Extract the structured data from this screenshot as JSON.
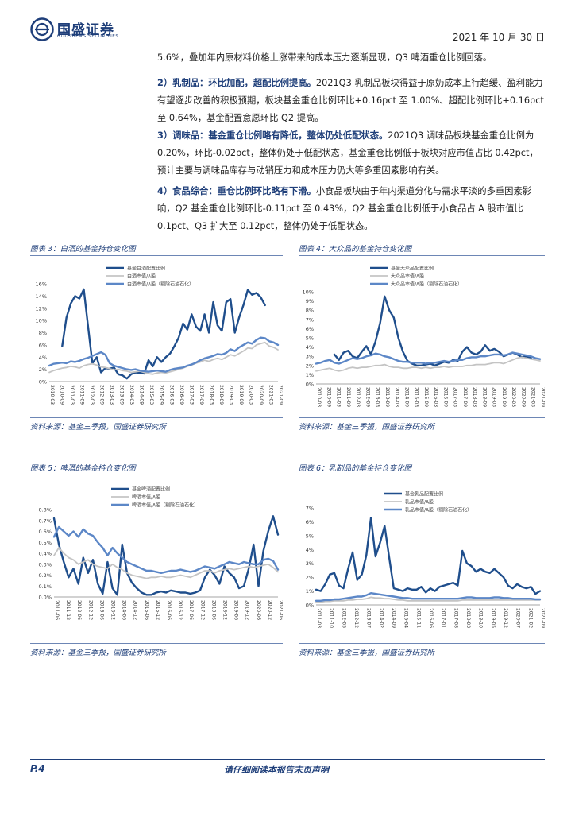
{
  "header": {
    "logo_cn": "国盛证券",
    "logo_en": "GUOSHENG SECURITIES",
    "date": "2021 年 10 月 30 日"
  },
  "paragraphs": [
    {
      "bold": "",
      "text": "5.6%，叠加年内原材料价格上涨带来的成本压力逐渐显现，Q3 啤酒重仓比例回落。"
    },
    {
      "bold": "2）乳制品：环比加配，超配比例提高。",
      "text": "2021Q3 乳制品板块得益于原奶成本上行趋缓、盈利能力有望逐步改善的积极预期，板块基金重仓比例环比+0.16pct 至 1.00%、超配比例环比+0.16pct 至 0.64%，基金配置意愿环比 Q2 提高。"
    },
    {
      "bold": "3）调味品：基金重仓比例略有降低，整体仍处低配状态。",
      "text": "2021Q3 调味品板块基金重仓比例为 0.20%，环比-0.02pct，整体仍处于低配状态，基金重仓比例低于板块对应市值占比 0.42pct，预计主要与调味品库存与动销压力和成本压力仍大等多重因素影响有关。"
    },
    {
      "bold": "4）食品综合：重仓比例环比略有下滑。",
      "text": "小食品板块由于年内渠道分化与需求平淡的多重因素影响，Q2 基金重仓比例环比-0.11pct 至 0.43%，Q2 基金重仓比例低于小食品占 A 股市值比 0.1pct、Q3 扩大至 0.12pct，整体仍处于低配状态。"
    }
  ],
  "figures": [
    {
      "title": "图表 3：白酒的基金持仓变化图",
      "source": "资料来源：基金三季报，国盛证券研究所"
    },
    {
      "title": "图表 4：大众品的基金持仓变化图",
      "source": "资料来源：基金三季报，国盛证券研究所"
    },
    {
      "title": "图表 5：啤酒的基金持仓变化图",
      "source": "资料来源：基金三季报，国盛证券研究所"
    },
    {
      "title": "图表 6：乳制品的基金持仓变化图",
      "source": "资料来源：基金三季报，国盛证券研究所"
    }
  ],
  "chart_data": [
    {
      "type": "line",
      "title": "白酒的基金持仓变化图",
      "ylim": [
        0,
        16
      ],
      "yticks": [
        "0%",
        "2%",
        "4%",
        "6%",
        "8%",
        "10%",
        "12%",
        "14%",
        "16%"
      ],
      "xticks": [
        "2010-03",
        "2010-09",
        "2011-03",
        "2011-09",
        "2012-03",
        "2012-09",
        "2013-03",
        "2013-09",
        "2014-03",
        "2014-09",
        "2015-03",
        "2015-09",
        "2016-03",
        "2016-09",
        "2017-03",
        "2017-09",
        "2018-03",
        "2018-09",
        "2019-03",
        "2019-09",
        "2020-03",
        "2020-09",
        "2021-03",
        "2021-09"
      ],
      "series": [
        {
          "name": "基金白酒配置比例",
          "color": "#1f4e8c",
          "width": 2.4,
          "start": 3,
          "values": [
            5.8,
            10.5,
            12.8,
            14,
            13.6,
            15.1,
            9,
            3,
            4,
            1.5,
            2.2,
            2.1,
            2.3,
            1.2,
            1,
            0.5,
            1.2,
            1.5,
            1.4,
            1.3,
            3.5,
            2.5,
            4,
            3.2,
            4,
            4.6,
            5.8,
            7.2,
            9.5,
            8.5,
            11,
            9,
            8.3,
            11,
            8,
            13,
            9.2,
            8.3,
            13,
            13.5,
            8,
            10.5,
            12.5,
            15,
            14.2,
            14.5,
            13.8,
            12.5
          ]
        },
        {
          "name": "白酒市值/A股",
          "color": "#c4c4c4",
          "width": 1.8,
          "start": 0,
          "values": [
            1.5,
            1.8,
            2,
            2.2,
            2.3,
            2.5,
            2.4,
            2.2,
            2.6,
            2.8,
            2.9,
            2.7,
            2.4,
            2.3,
            2.1,
            1.9,
            2,
            1.8,
            1.7,
            1.5,
            1.6,
            1.7,
            1.5,
            1.3,
            1.2,
            1.4,
            1.5,
            1.4,
            1.6,
            1.8,
            2.0,
            2.2,
            2.5,
            2.7,
            3.0,
            3.2,
            3.5,
            3.3,
            3.6,
            3.8,
            3.6,
            4.0,
            4.4,
            4.2,
            4.6,
            5.0,
            5.5,
            5.4,
            6.0,
            6.2,
            6.4,
            5.8,
            5.6,
            5.2
          ]
        },
        {
          "name": "白酒市值/A股（剔除石油石化）",
          "color": "#5c87c7",
          "width": 2.4,
          "start": 0,
          "values": [
            2.6,
            2.9,
            3.0,
            3.1,
            3.0,
            3.3,
            3.2,
            3.4,
            3.7,
            3.9,
            4.2,
            4.5,
            4.8,
            4.4,
            3.0,
            2.6,
            2.4,
            2.2,
            2.0,
            1.9,
            2.0,
            1.8,
            1.7,
            1.6,
            1.7,
            1.8,
            1.7,
            1.6,
            1.9,
            2.1,
            2.2,
            2.3,
            2.6,
            2.8,
            3.1,
            3.5,
            3.8,
            4.0,
            4.2,
            4.5,
            4.4,
            4.7,
            5.3,
            5.0,
            5.6,
            6.0,
            6.4,
            6.2,
            6.8,
            7.2,
            7.1,
            6.6,
            6.4,
            6.0
          ]
        }
      ]
    },
    {
      "type": "line",
      "title": "大众品的基金持仓变化图",
      "ylim": [
        0,
        10
      ],
      "yticks": [
        "0%",
        "1%",
        "2%",
        "3%",
        "4%",
        "5%",
        "6%",
        "7%",
        "8%",
        "9%",
        "10%"
      ],
      "xticks": [
        "2010-03",
        "2010-09",
        "2011-03",
        "2011-09",
        "2012-03",
        "2012-09",
        "2013-03",
        "2013-09",
        "2014-03",
        "2014-09",
        "2015-03",
        "2015-09",
        "2016-03",
        "2016-09",
        "2017-03",
        "2017-09",
        "2018-03",
        "2018-09",
        "2019-03",
        "2019-09",
        "2020-03",
        "2020-09",
        "2021-03",
        "2021-09"
      ],
      "series": [
        {
          "name": "基金大众品配置比例",
          "color": "#1f4e8c",
          "width": 2.4,
          "start": 4,
          "values": [
            3.2,
            2.6,
            3.4,
            3.6,
            3.0,
            2.8,
            3.5,
            4.1,
            3.2,
            4.6,
            6.6,
            9.5,
            8.0,
            7.2,
            5.0,
            3.5,
            2.5,
            2.2,
            2.0,
            2.0,
            2.1,
            2.2,
            2.0,
            2.2,
            2.4,
            2.3,
            2.6,
            2.5,
            3.5,
            4.0,
            3.4,
            3.2,
            3.5,
            4.2,
            3.6,
            3.8,
            3.5,
            3.0,
            3.2,
            3.4,
            3.2,
            2.9,
            3.0,
            2.8
          ]
        },
        {
          "name": "大众品市值/A股",
          "color": "#c4c4c4",
          "width": 1.8,
          "start": 0,
          "values": [
            1.4,
            1.5,
            1.6,
            1.7,
            1.5,
            1.4,
            1.5,
            1.7,
            1.8,
            1.7,
            1.8,
            1.8,
            1.9,
            2.0,
            2.0,
            2.1,
            1.9,
            1.8,
            1.8,
            1.7,
            1.7,
            1.8,
            1.8,
            1.7,
            1.8,
            1.7,
            1.8,
            1.8,
            1.9,
            1.8,
            1.9,
            1.9,
            1.9,
            2.0,
            2.0,
            2.1,
            2.1,
            2.1,
            2.2,
            2.3,
            2.3,
            2.2,
            2.4,
            2.6,
            2.8,
            2.9,
            2.8,
            2.7,
            2.6,
            2.5
          ]
        },
        {
          "name": "大众品市值/A股（剔除石油石化）",
          "color": "#5c87c7",
          "width": 2.4,
          "start": 0,
          "values": [
            2.2,
            2.3,
            2.5,
            2.6,
            2.3,
            2.2,
            2.4,
            2.6,
            2.8,
            2.7,
            2.8,
            3.0,
            3.1,
            3.3,
            3.2,
            3.0,
            2.9,
            2.7,
            2.5,
            2.4,
            2.4,
            2.3,
            2.3,
            2.3,
            2.2,
            2.3,
            2.3,
            2.4,
            2.5,
            2.4,
            2.5,
            2.6,
            2.6,
            2.8,
            2.9,
            2.9,
            3.0,
            3.0,
            3.1,
            3.2,
            3.2,
            3.1,
            3.2,
            3.4,
            3.3,
            3.2,
            3.1,
            3.0,
            2.8,
            2.7
          ]
        }
      ]
    },
    {
      "type": "line",
      "title": "啤酒的基金持仓变化图",
      "ylim": [
        0,
        0.8
      ],
      "yticks": [
        "0.0%",
        "0.1%",
        "0.2%",
        "0.3%",
        "0.4%",
        "0.5%",
        "0.6%",
        "0.7%",
        "0.8%"
      ],
      "xticks": [
        "2011-06",
        "2011-12",
        "2012-06",
        "2012-12",
        "2013-06",
        "2013-12",
        "2014-06",
        "2014-12",
        "2015-06",
        "2015-12",
        "2016-06",
        "2016-12",
        "2017-06",
        "2017-12",
        "2018-06",
        "2018-12",
        "2019-06",
        "2019-12",
        "2020-06",
        "2020-12",
        "2021-06"
      ],
      "series": [
        {
          "name": "基金啤酒配置比例",
          "color": "#1f4e8c",
          "width": 2.4,
          "start": 0,
          "values": [
            0.72,
            0.48,
            0.32,
            0.18,
            0.26,
            0.12,
            0.36,
            0.22,
            0.34,
            0.12,
            0.03,
            0.32,
            0.08,
            0.02,
            0.48,
            0.22,
            0.13,
            0.08,
            0.04,
            0.02,
            0.02,
            0.04,
            0.05,
            0.04,
            0.06,
            0.05,
            0.04,
            0.04,
            0.03,
            0.04,
            0.06,
            0.18,
            0.25,
            0.2,
            0.12,
            0.28,
            0.22,
            0.18,
            0.08,
            0.1,
            0.26,
            0.48,
            0.1,
            0.42,
            0.6,
            0.74,
            0.57
          ]
        },
        {
          "name": "啤酒市值/A股",
          "color": "#c4c4c4",
          "width": 1.8,
          "start": 0,
          "values": [
            0.38,
            0.45,
            0.4,
            0.36,
            0.34,
            0.3,
            0.32,
            0.34,
            0.3,
            0.28,
            0.27,
            0.26,
            0.3,
            0.27,
            0.25,
            0.22,
            0.2,
            0.19,
            0.18,
            0.17,
            0.18,
            0.18,
            0.19,
            0.18,
            0.18,
            0.19,
            0.2,
            0.19,
            0.18,
            0.2,
            0.22,
            0.24,
            0.24,
            0.22,
            0.24,
            0.25,
            0.26,
            0.25,
            0.26,
            0.27,
            0.28,
            0.27,
            0.28,
            0.29,
            0.3,
            0.27,
            0.23
          ]
        },
        {
          "name": "啤酒市值/A股（剔除石油石化）",
          "color": "#5c87c7",
          "width": 2.4,
          "start": 0,
          "values": [
            0.55,
            0.64,
            0.6,
            0.56,
            0.6,
            0.55,
            0.62,
            0.58,
            0.56,
            0.5,
            0.45,
            0.38,
            0.45,
            0.4,
            0.36,
            0.32,
            0.3,
            0.28,
            0.26,
            0.24,
            0.24,
            0.23,
            0.22,
            0.23,
            0.24,
            0.24,
            0.25,
            0.24,
            0.23,
            0.24,
            0.26,
            0.28,
            0.27,
            0.26,
            0.28,
            0.3,
            0.32,
            0.31,
            0.3,
            0.32,
            0.31,
            0.3,
            0.3,
            0.34,
            0.35,
            0.33,
            0.25
          ]
        }
      ]
    },
    {
      "type": "line",
      "title": "乳制品的基金持仓变化图",
      "ylim": [
        0,
        7
      ],
      "yticks": [
        "0%",
        "1%",
        "2%",
        "3%",
        "4%",
        "5%",
        "6%",
        "7%"
      ],
      "xticks": [
        "2011-03",
        "2011-10",
        "2012-05",
        "2012-12",
        "2013-07",
        "2014-02",
        "2014-09",
        "2015-04",
        "2015-11",
        "2016-06",
        "2017-01",
        "2017-08",
        "2018-03",
        "2018-10",
        "2019-05",
        "2019-12",
        "2020-07",
        "2021-02",
        "2021-09"
      ],
      "series": [
        {
          "name": "基金乳品配置比例",
          "color": "#1f4e8c",
          "width": 2.4,
          "start": 0,
          "values": [
            1.1,
            1.0,
            1.5,
            2.2,
            2.3,
            1.4,
            1.2,
            2.6,
            3.8,
            1.8,
            2.2,
            3.6,
            6.3,
            3.5,
            4.5,
            5.7,
            3.4,
            1.2,
            1.1,
            1.0,
            1.2,
            1.1,
            1.1,
            1.3,
            0.9,
            1.2,
            1.0,
            1.3,
            1.4,
            1.5,
            1.6,
            1.4,
            3.9,
            3.0,
            2.8,
            2.4,
            2.6,
            2.4,
            2.3,
            2.6,
            2.3,
            2.0,
            1.4,
            1.2,
            1.5,
            1.3,
            1.2,
            1.3,
            0.8,
            1.0
          ]
        },
        {
          "name": "乳品市值/A股",
          "color": "#c4c4c4",
          "width": 1.8,
          "start": 0,
          "values": [
            0.2,
            0.2,
            0.25,
            0.25,
            0.3,
            0.3,
            0.3,
            0.35,
            0.35,
            0.4,
            0.4,
            0.45,
            0.55,
            0.5,
            0.5,
            0.45,
            0.45,
            0.4,
            0.35,
            0.35,
            0.3,
            0.3,
            0.3,
            0.3,
            0.3,
            0.3,
            0.3,
            0.3,
            0.3,
            0.3,
            0.3,
            0.3,
            0.35,
            0.35,
            0.35,
            0.35,
            0.35,
            0.35,
            0.35,
            0.35,
            0.35,
            0.35,
            0.35,
            0.35,
            0.35,
            0.35,
            0.35,
            0.35,
            0.35,
            0.35
          ]
        },
        {
          "name": "乳品市值/A股（剔除石油石化）",
          "color": "#5c87c7",
          "width": 2.4,
          "start": 0,
          "values": [
            0.3,
            0.3,
            0.35,
            0.35,
            0.4,
            0.4,
            0.45,
            0.5,
            0.55,
            0.6,
            0.6,
            0.7,
            0.85,
            0.8,
            0.75,
            0.7,
            0.65,
            0.6,
            0.55,
            0.5,
            0.5,
            0.45,
            0.45,
            0.45,
            0.45,
            0.45,
            0.45,
            0.45,
            0.45,
            0.45,
            0.45,
            0.45,
            0.5,
            0.55,
            0.55,
            0.5,
            0.5,
            0.5,
            0.5,
            0.55,
            0.55,
            0.5,
            0.5,
            0.45,
            0.45,
            0.45,
            0.45,
            0.45,
            0.4,
            0.4
          ]
        }
      ]
    }
  ],
  "footer": {
    "page": "P.4",
    "disclaimer": "请仔细阅读本报告末页声明"
  },
  "colors": {
    "brand": "#1f3f7a",
    "series_dark": "#1f4e8c",
    "series_gray": "#c4c4c4",
    "series_light": "#5c87c7"
  }
}
